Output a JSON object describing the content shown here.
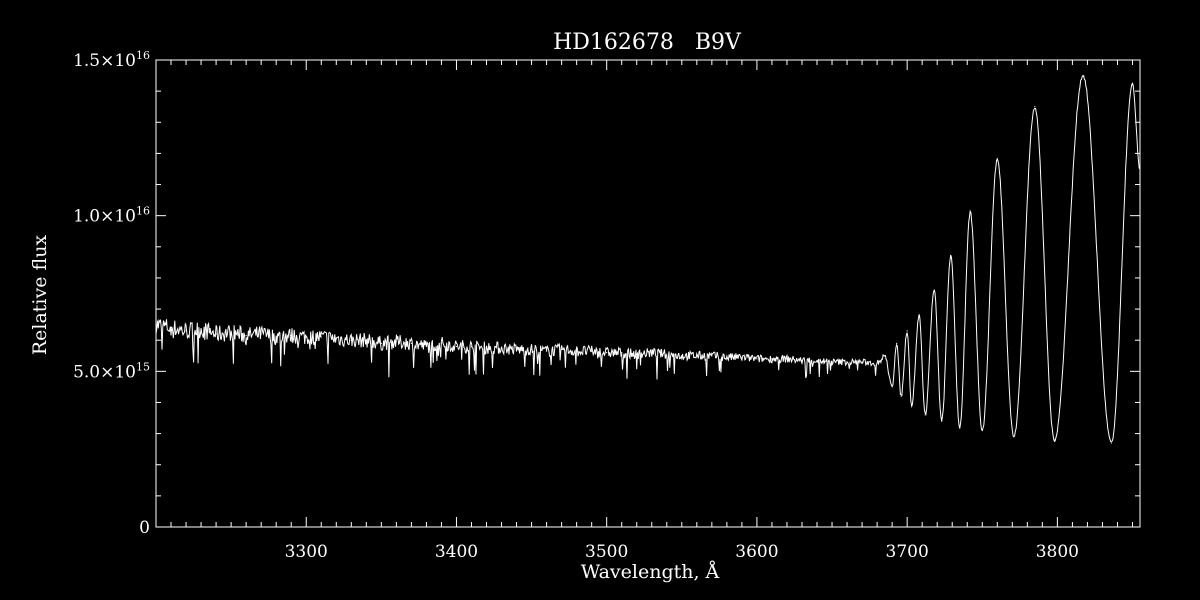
{
  "chart_data": {
    "type": "line",
    "title": "HD162678   B9V",
    "xlabel": "Wavelength, Å",
    "ylabel": "Relative flux",
    "xlim": [
      3200,
      3855
    ],
    "ylim": [
      0,
      1.5e+16
    ],
    "grid": false,
    "legend": "none",
    "x_ticks": [
      {
        "value": 3300,
        "label": "3300"
      },
      {
        "value": 3400,
        "label": "3400"
      },
      {
        "value": 3500,
        "label": "3500"
      },
      {
        "value": 3600,
        "label": "3600"
      },
      {
        "value": 3700,
        "label": "3700"
      },
      {
        "value": 3800,
        "label": "3800"
      }
    ],
    "y_ticks": [
      {
        "value": 0,
        "mantissa": "0",
        "exponent": ""
      },
      {
        "value": 5000000000000000.0,
        "mantissa": "5.0×10",
        "exponent": "15"
      },
      {
        "value": 1e+16,
        "mantissa": "1.0×10",
        "exponent": "16"
      },
      {
        "value": 1.5e+16,
        "mantissa": "1.5×10",
        "exponent": "16"
      }
    ],
    "series": [
      {
        "color": "#ffffff",
        "x": [
          3200,
          3210,
          3220,
          3230,
          3240,
          3250,
          3260,
          3270,
          3280,
          3290,
          3300,
          3310,
          3320,
          3330,
          3340,
          3350,
          3360,
          3370,
          3380,
          3390,
          3400,
          3410,
          3420,
          3430,
          3440,
          3450,
          3460,
          3470,
          3480,
          3490,
          3500,
          3510,
          3520,
          3530,
          3540,
          3550,
          3560,
          3570,
          3580,
          3590,
          3600,
          3610,
          3620,
          3630,
          3640,
          3650,
          3660,
          3670,
          3680,
          3685,
          3690,
          3693,
          3696,
          3700,
          3703,
          3708,
          3712,
          3718,
          3723,
          3729,
          3735,
          3742,
          3750,
          3760,
          3771,
          3785,
          3798,
          3817,
          3836,
          3850,
          3855
        ],
        "y": [
          6500000000000000.0,
          6400000000000000.0,
          6300000000000000.0,
          6350000000000000.0,
          6200000000000000.0,
          6250000000000000.0,
          6150000000000000.0,
          6200000000000000.0,
          6100000000000000.0,
          6150000000000000.0,
          6100000000000000.0,
          6100000000000000.0,
          6050000000000000.0,
          6000000000000000.0,
          6000000000000000.0,
          5900000000000000.0,
          5950000000000000.0,
          5900000000000000.0,
          5800000000000000.0,
          5900000000000000.0,
          5800000000000000.0,
          5800000000000000.0,
          5750000000000000.0,
          5750000000000000.0,
          5700000000000000.0,
          5700000000000000.0,
          5650000000000000.0,
          5700000000000000.0,
          5650000000000000.0,
          5650000000000000.0,
          5600000000000000.0,
          5600000000000000.0,
          5550000000000000.0,
          5600000000000000.0,
          5550000000000000.0,
          5500000000000000.0,
          5500000000000000.0,
          5500000000000000.0,
          5450000000000000.0,
          5450000000000000.0,
          5400000000000000.0,
          5400000000000000.0,
          5400000000000000.0,
          5350000000000000.0,
          5350000000000000.0,
          5300000000000000.0,
          5300000000000000.0,
          5300000000000000.0,
          5250000000000000.0,
          5500000000000000.0,
          4500000000000000.0,
          5900000000000000.0,
          4200000000000000.0,
          6300000000000000.0,
          3900000000000000.0,
          6800000000000000.0,
          3600000000000000.0,
          7600000000000000.0,
          3400000000000000.0,
          8700000000000000.0,
          3200000000000000.0,
          1.01e+16,
          3100000000000000.0,
          1.18e+16,
          2900000000000000.0,
          1.35e+16,
          2800000000000000.0,
          1.45e+16,
          2700000000000000.0,
          1.42e+16,
          1.15e+16
        ]
      }
    ]
  }
}
